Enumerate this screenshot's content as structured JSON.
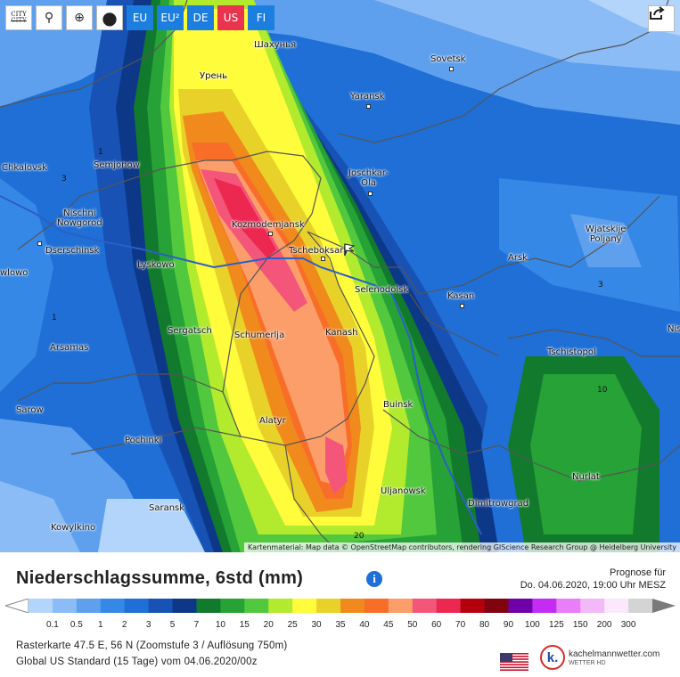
{
  "toolbar": {
    "buttons": [
      {
        "name": "refresh-icon",
        "glyph": "⟳"
      },
      {
        "name": "location-pin-icon",
        "glyph": "⚲"
      },
      {
        "name": "zoom-icon",
        "glyph": "⊕"
      }
    ],
    "city_button": {
      "line1": "CITY",
      "line2": "CITY"
    },
    "marker_button": {
      "name": "marker-icon",
      "glyph": "●"
    },
    "regions": [
      {
        "label": "EU",
        "color": "#1c7fe0",
        "active": false
      },
      {
        "label": "EU²",
        "color": "#1c7fe0",
        "active": false
      },
      {
        "label": "DE",
        "color": "#1c7fe0",
        "active": false
      },
      {
        "label": "US",
        "color": "#e8344e",
        "active": true
      },
      {
        "label": "FI",
        "color": "#1c7fe0",
        "active": false
      }
    ]
  },
  "share": {
    "icon": "share-icon"
  },
  "map": {
    "cities": [
      {
        "name": "Шахунья"
      },
      {
        "name": "Sovetsk"
      },
      {
        "name": "Урень"
      },
      {
        "name": "Yaransk"
      },
      {
        "name": "Chkalovsk"
      },
      {
        "name": "Semjonow"
      },
      {
        "name": "Joschkar-\nOla"
      },
      {
        "name": "Nischni\nNowgorod"
      },
      {
        "name": "Kozmodemjansk"
      },
      {
        "name": "Wjatskije\nPoljany"
      },
      {
        "name": "Dserschinsk"
      },
      {
        "name": "Tscheboksary"
      },
      {
        "name": "Arsk"
      },
      {
        "name": "Lyskowo"
      },
      {
        "name": "wlowo"
      },
      {
        "name": "Selenodolsk"
      },
      {
        "name": "Kasan"
      },
      {
        "name": "Nis"
      },
      {
        "name": "Sergatsch"
      },
      {
        "name": "Schumerlja"
      },
      {
        "name": "Kanash"
      },
      {
        "name": "Arsamas"
      },
      {
        "name": "Tschistopol"
      },
      {
        "name": "Sarow"
      },
      {
        "name": "Buinsk"
      },
      {
        "name": "Alatyr"
      },
      {
        "name": "Pochinki"
      },
      {
        "name": "Nurlat"
      },
      {
        "name": "Uljanowsk"
      },
      {
        "name": "Dimitrowgrad"
      },
      {
        "name": "Saransk"
      },
      {
        "name": "Kowylkino"
      }
    ],
    "contour_labels": [
      "1",
      "3",
      "1",
      "3",
      "10",
      "20"
    ],
    "attribution": "Kartenmaterial: Map data © OpenStreetMap contributors, rendering GIScience Research Group @ Heidelberg University"
  },
  "footer": {
    "title": "Niederschlagssumme, 6std (mm)",
    "info_icon": "info-icon",
    "forecast_label": "Prognose für",
    "forecast_time": "Do. 04.06.2020, 19:00 Uhr MESZ",
    "scale": {
      "values": [
        "0.1",
        "0.5",
        "1",
        "2",
        "3",
        "5",
        "7",
        "10",
        "15",
        "20",
        "25",
        "30",
        "35",
        "40",
        "45",
        "50",
        "60",
        "70",
        "80",
        "90",
        "100",
        "125",
        "150",
        "200",
        "300"
      ],
      "colors": [
        "#b3d5fb",
        "#8cbcf5",
        "#5ea0ee",
        "#3688e6",
        "#1f6fd6",
        "#1852b4",
        "#0d3888",
        "#127a2c",
        "#26a236",
        "#52c83e",
        "#b2ea2e",
        "#fffc3c",
        "#e8d22a",
        "#f08a1c",
        "#f86e28",
        "#fb9e6a",
        "#f4567a",
        "#ec2850",
        "#b3000c",
        "#800410",
        "#7000a8",
        "#c42cf4",
        "#e87ef8",
        "#f2b8f8",
        "#fbe8fc",
        "#d4d4d4"
      ]
    },
    "meta_line1": "Rasterkarte 47.5 E, 56 N (Zoomstufe 3 / Auflösung 750m)",
    "meta_line2": "Global US Standard (15 Tage) vom 04.06.2020/00z",
    "brand_logo": "k.",
    "brand_name": "kachelmannwetter.com",
    "brand_sub": "WETTER HD"
  }
}
